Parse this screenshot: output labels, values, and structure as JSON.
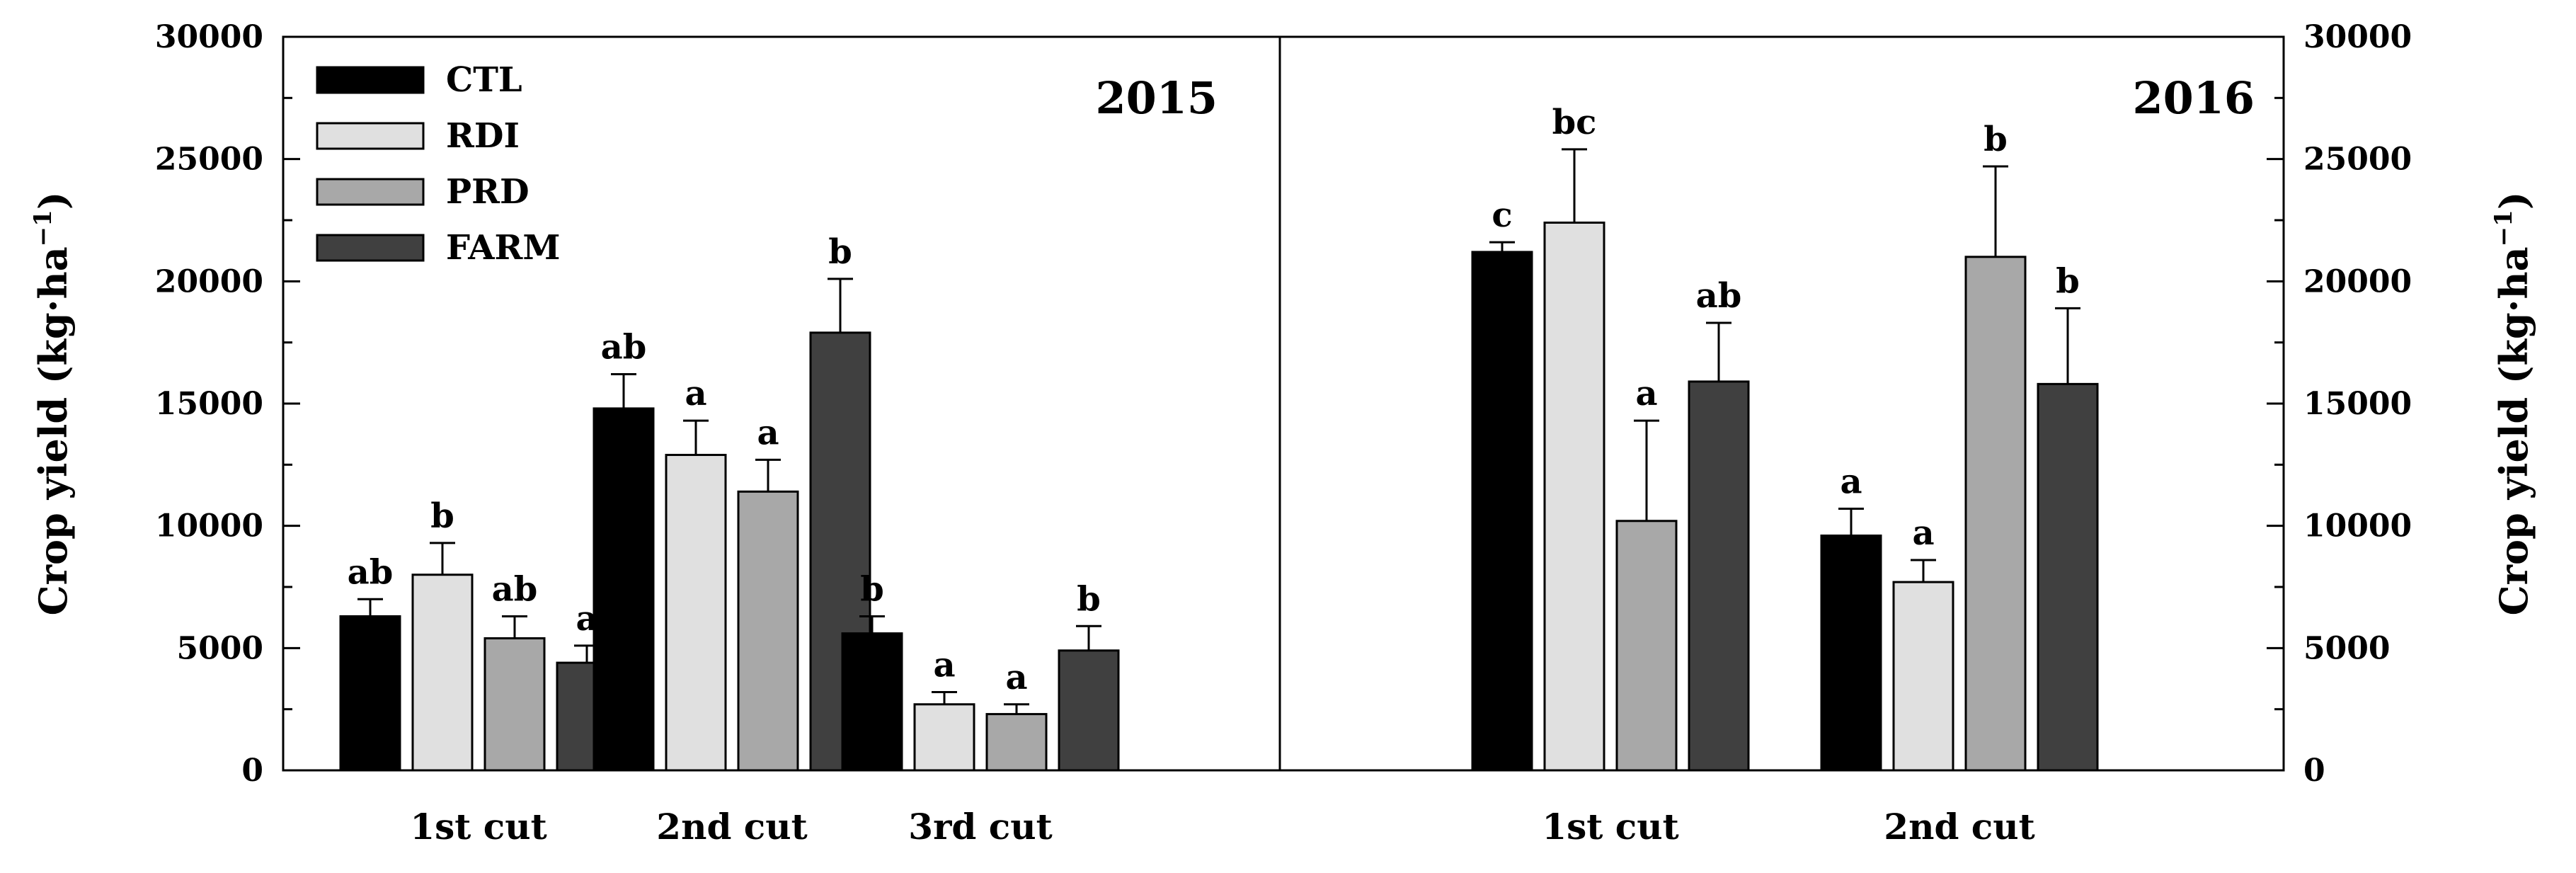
{
  "chart_data": {
    "type": "bar",
    "ylabel": "Crop yield (kg·ha",
    "ylabel_sup": "−1",
    "ylim": [
      0,
      30000
    ],
    "yticks": [
      0,
      5000,
      10000,
      15000,
      20000,
      25000,
      30000
    ],
    "colors": {
      "CTL": "#000000",
      "RDI": "#e0e0e0",
      "PRD": "#a8a8a8",
      "FARM": "#404040"
    },
    "legend": [
      "CTL",
      "RDI",
      "PRD",
      "FARM"
    ],
    "panels": [
      {
        "title": "2015",
        "categories": [
          "1st cut",
          "2nd cut",
          "3rd cut"
        ],
        "series": [
          {
            "name": "CTL",
            "values": [
              6300,
              14800,
              5600
            ],
            "errors": [
              700,
              1400,
              700
            ],
            "letters": [
              "ab",
              "ab",
              "b"
            ]
          },
          {
            "name": "RDI",
            "values": [
              8000,
              12900,
              2700
            ],
            "errors": [
              1300,
              1400,
              500
            ],
            "letters": [
              "b",
              "a",
              "a"
            ]
          },
          {
            "name": "PRD",
            "values": [
              5400,
              11400,
              2300
            ],
            "errors": [
              900,
              1300,
              400
            ],
            "letters": [
              "ab",
              "a",
              "a"
            ]
          },
          {
            "name": "FARM",
            "values": [
              4400,
              17900,
              4900
            ],
            "errors": [
              700,
              2200,
              1000
            ],
            "letters": [
              "a",
              "b",
              "b"
            ]
          }
        ]
      },
      {
        "title": "2016",
        "categories": [
          "1st cut",
          "2nd cut"
        ],
        "series": [
          {
            "name": "CTL",
            "values": [
              21200,
              9600
            ],
            "errors": [
              400,
              1100
            ],
            "letters": [
              "c",
              "a"
            ]
          },
          {
            "name": "RDI",
            "values": [
              22400,
              7700
            ],
            "errors": [
              3000,
              900
            ],
            "letters": [
              "bc",
              "a"
            ]
          },
          {
            "name": "PRD",
            "values": [
              10200,
              21000
            ],
            "errors": [
              4100,
              3700
            ],
            "letters": [
              "a",
              "b"
            ]
          },
          {
            "name": "FARM",
            "values": [
              15900,
              15800
            ],
            "errors": [
              2400,
              3100
            ],
            "letters": [
              "ab",
              "b"
            ]
          }
        ]
      }
    ]
  }
}
